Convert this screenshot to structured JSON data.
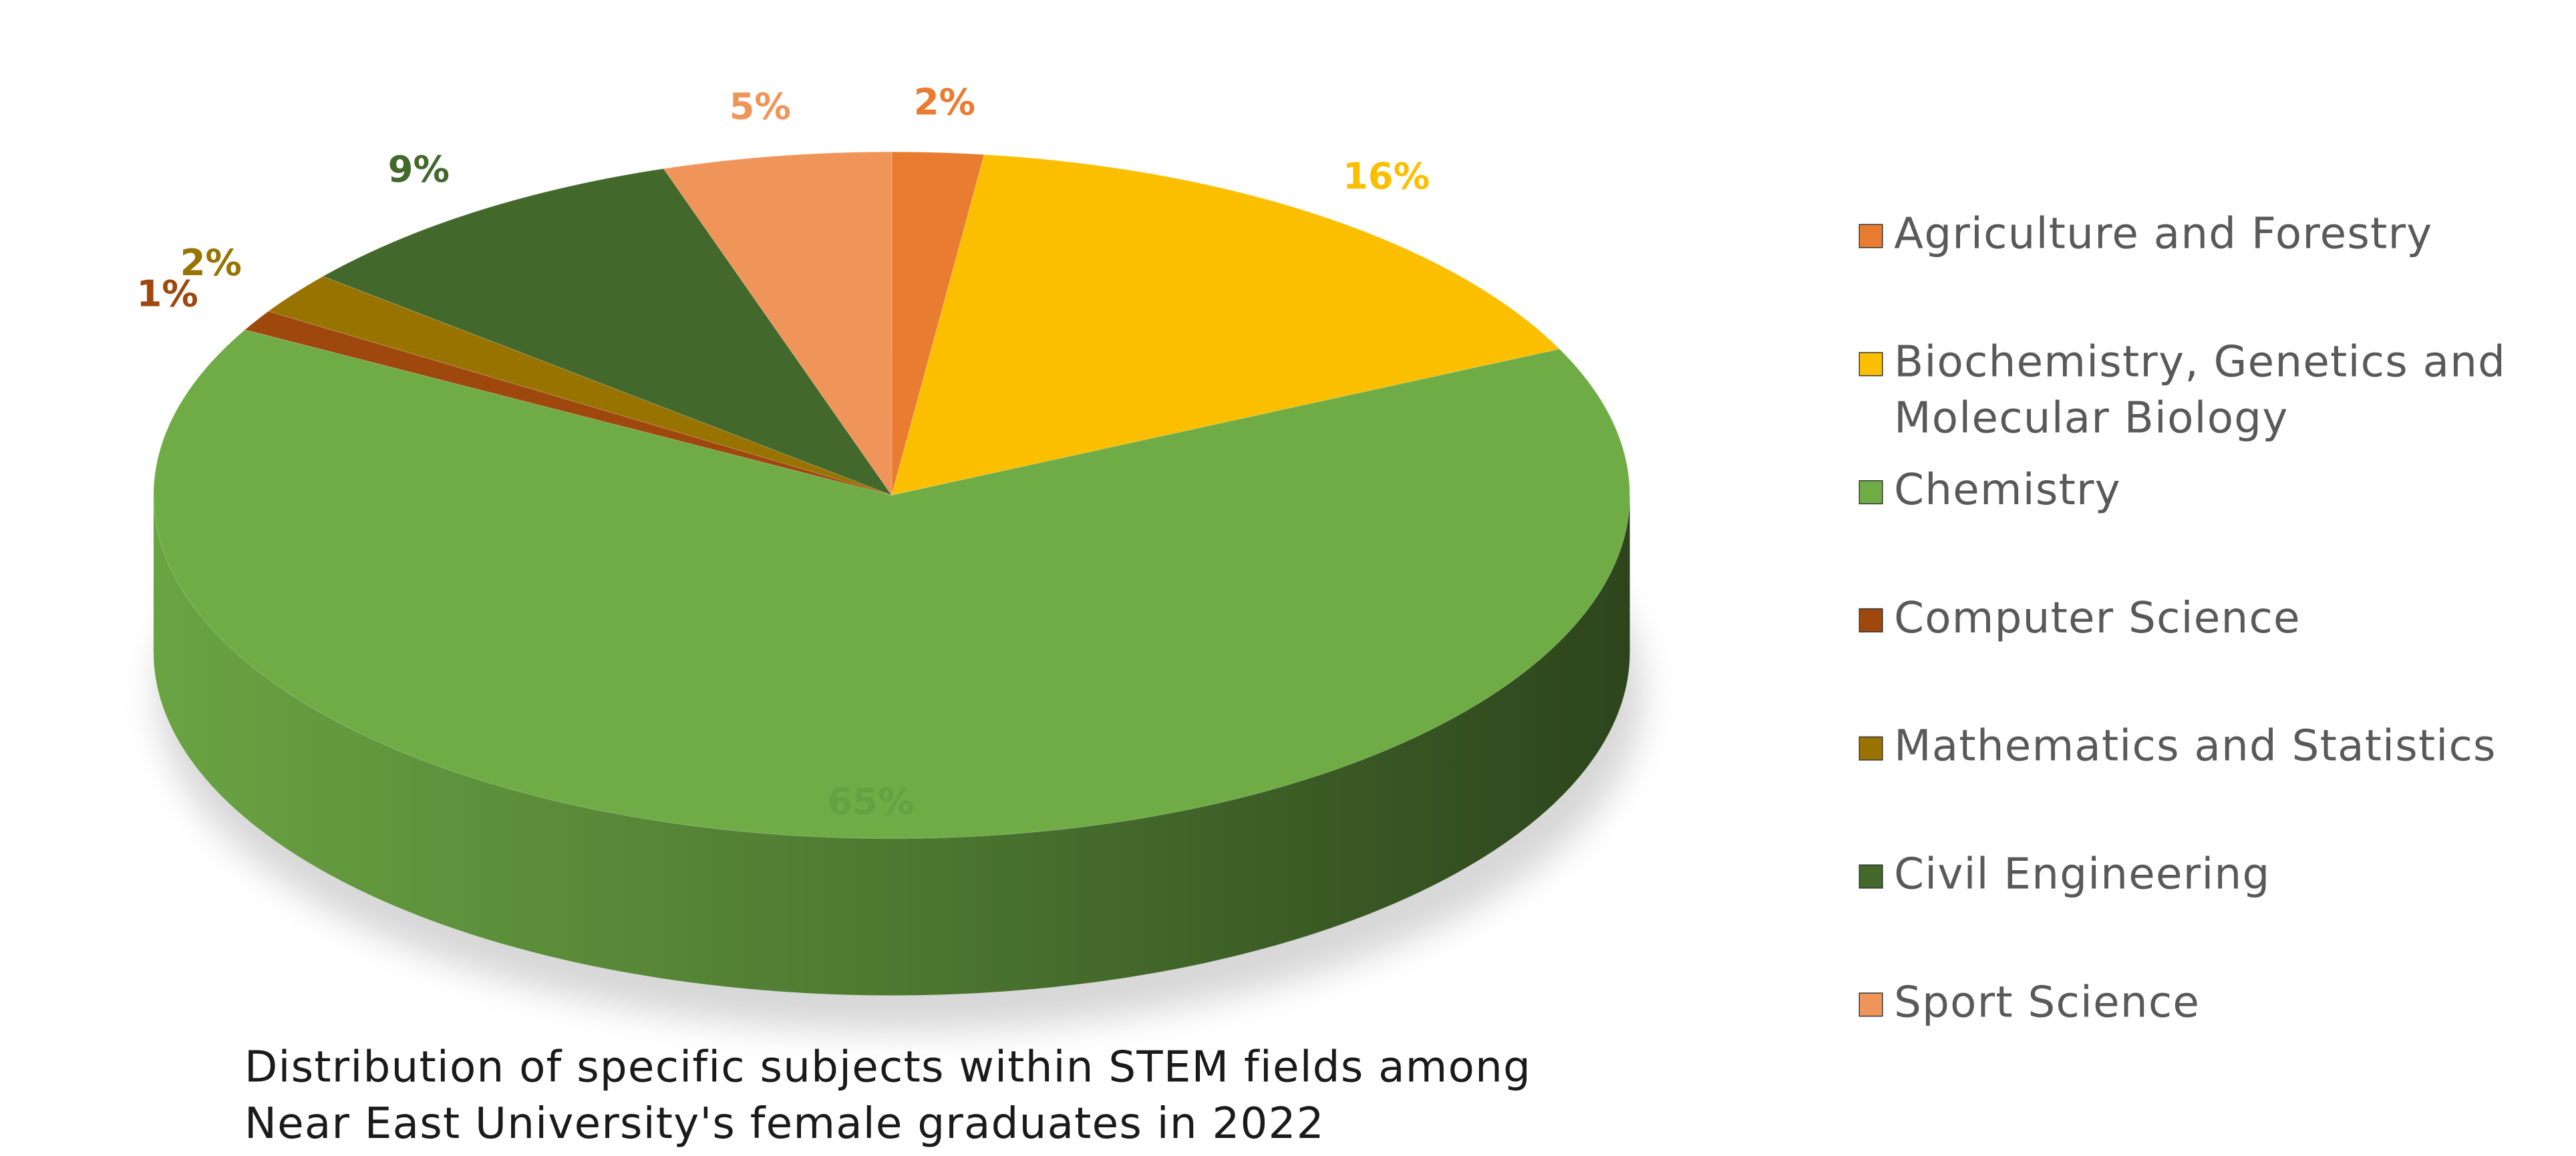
{
  "chart_data": {
    "type": "pie",
    "title": "Distribution of specific subjects within STEM fields among Near East University's female graduates in 2022",
    "categories": [
      "Agriculture and Forestry",
      "Biochemistry, Genetics and Molecular Biology",
      "Chemistry",
      "Computer Science",
      "Mathematics and Statistics",
      "Civil Engineering",
      "Sport Science"
    ],
    "values": [
      2,
      16,
      65,
      1,
      2,
      9,
      5
    ],
    "value_labels": [
      "2%",
      "16%",
      "65%",
      "1%",
      "2%",
      "9%",
      "5%"
    ],
    "colors": [
      "#e97c30",
      "#fbbf00",
      "#6fac46",
      "#9e480e",
      "#997300",
      "#43682b",
      "#f0955a"
    ],
    "legend": "right"
  }
}
